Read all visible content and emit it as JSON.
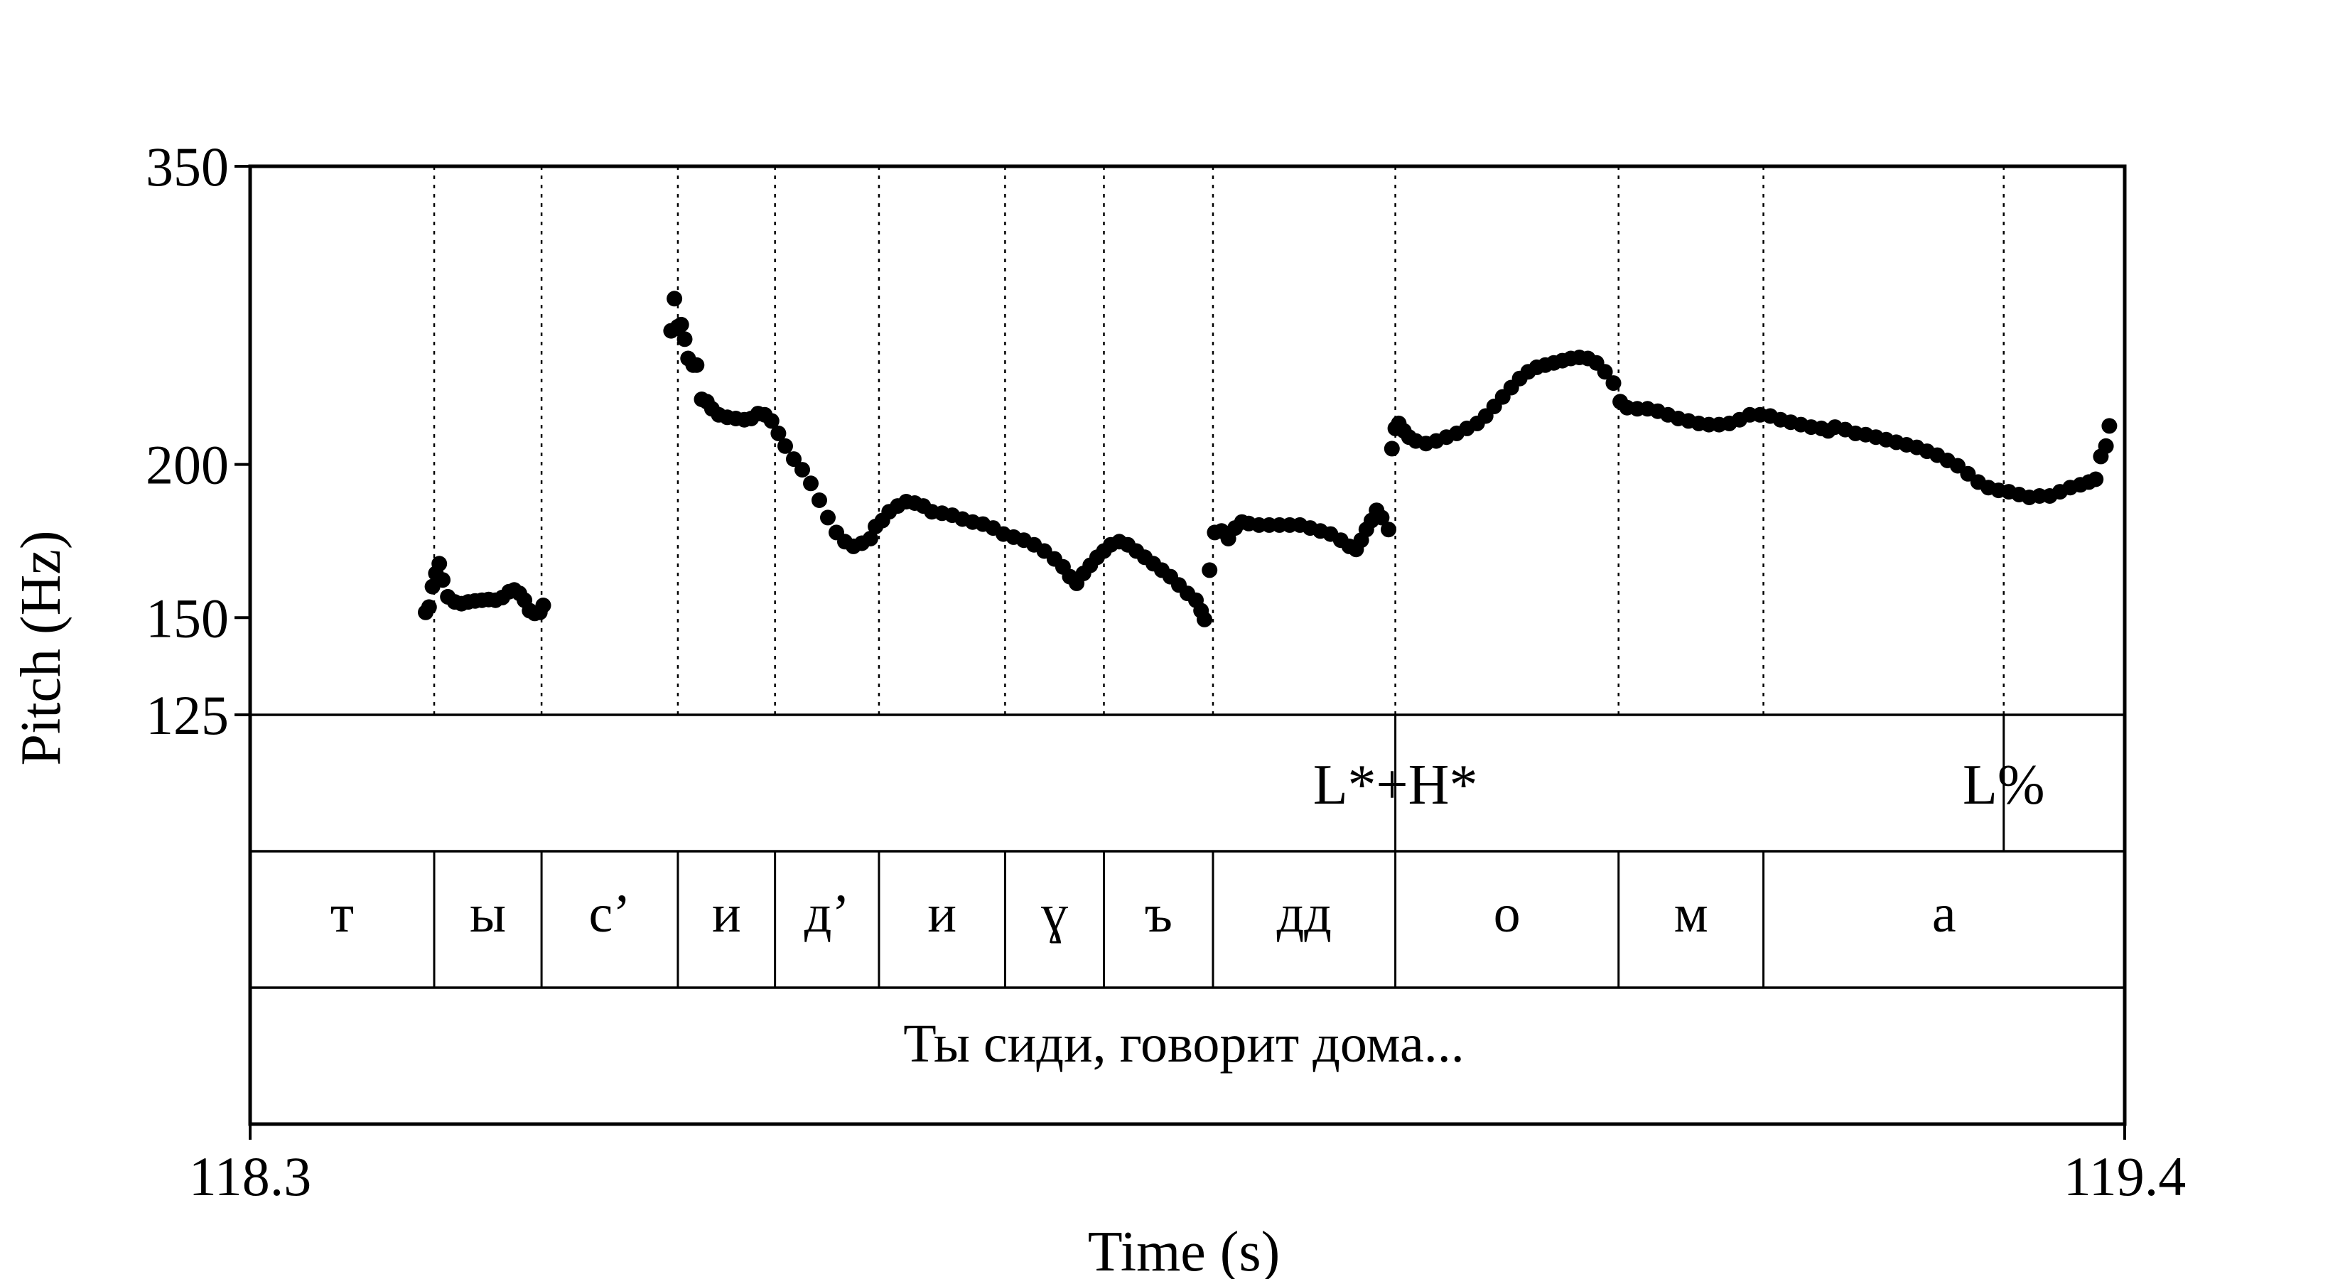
{
  "chart_data": {
    "type": "scatter",
    "title": "",
    "xlabel": "Time (s)",
    "ylabel": "Pitch (Hz)",
    "xlim": [
      118.3,
      119.4
    ],
    "ylim": [
      125,
      350
    ],
    "y_scale": "log",
    "x_ticks": [
      "118.3",
      "119.4"
    ],
    "y_ticks": [
      {
        "value": 125,
        "label": "125"
      },
      {
        "value": 150,
        "label": "150"
      },
      {
        "value": 200,
        "label": "200"
      },
      {
        "value": 350,
        "label": "350"
      }
    ],
    "grid": "vertical dotted lines at segment boundaries",
    "legend": "none",
    "marker_color": "#000000",
    "segment_boundaries": [
      118.408,
      118.471,
      118.551,
      118.608,
      118.669,
      118.743,
      118.801,
      118.865,
      118.972,
      119.103,
      119.188,
      119.329
    ],
    "tones": [
      {
        "time": 118.972,
        "label": "L*+H*"
      },
      {
        "time": 119.329,
        "label": "L%"
      }
    ],
    "segments": [
      {
        "start": 118.3,
        "end": 118.408,
        "label": "т"
      },
      {
        "start": 118.408,
        "end": 118.471,
        "label": "ы"
      },
      {
        "start": 118.471,
        "end": 118.551,
        "label": "с’"
      },
      {
        "start": 118.551,
        "end": 118.608,
        "label": "и"
      },
      {
        "start": 118.608,
        "end": 118.669,
        "label": "д’"
      },
      {
        "start": 118.669,
        "end": 118.743,
        "label": "и"
      },
      {
        "start": 118.743,
        "end": 118.801,
        "label": "ɣ"
      },
      {
        "start": 118.801,
        "end": 118.865,
        "label": "ъ"
      },
      {
        "start": 118.865,
        "end": 118.972,
        "label": "дд"
      },
      {
        "start": 118.972,
        "end": 119.103,
        "label": "о"
      },
      {
        "start": 119.103,
        "end": 119.188,
        "label": "м"
      },
      {
        "start": 119.188,
        "end": 119.4,
        "label": "а"
      }
    ],
    "utterance": "Ты сиди, говорит дома...",
    "series": [
      {
        "values": [
          [
            118.403,
            151.5
          ],
          [
            118.405,
            153
          ],
          [
            118.407,
            159
          ],
          [
            118.409,
            163
          ],
          [
            118.411,
            166
          ],
          [
            118.413,
            161
          ],
          [
            118.416,
            156
          ],
          [
            118.42,
            154.5
          ],
          [
            118.424,
            154
          ],
          [
            118.428,
            154.5
          ],
          [
            118.432,
            154.8
          ],
          [
            118.436,
            155
          ],
          [
            118.44,
            155.2
          ],
          [
            118.444,
            155
          ],
          [
            118.448,
            155.8
          ],
          [
            118.452,
            157.5
          ],
          [
            118.455,
            158
          ],
          [
            118.458,
            157
          ],
          [
            118.461,
            155
          ],
          [
            118.464,
            152
          ],
          [
            118.467,
            151.2
          ],
          [
            118.47,
            151.5
          ],
          [
            118.472,
            153.5
          ],
          [
            118.547,
            257
          ],
          [
            118.549,
            273
          ],
          [
            118.551,
            259
          ],
          [
            118.553,
            260
          ],
          [
            118.555,
            253
          ],
          [
            118.557,
            244
          ],
          [
            118.56,
            241
          ],
          [
            118.562,
            241
          ],
          [
            118.565,
            226
          ],
          [
            118.568,
            225
          ],
          [
            118.571,
            222
          ],
          [
            118.575,
            219.5
          ],
          [
            118.58,
            218.5
          ],
          [
            118.585,
            218
          ],
          [
            118.59,
            217.5
          ],
          [
            118.594,
            218
          ],
          [
            118.598,
            220
          ],
          [
            118.602,
            219.5
          ],
          [
            118.606,
            217
          ],
          [
            118.61,
            212
          ],
          [
            118.614,
            207
          ],
          [
            118.619,
            202
          ],
          [
            118.624,
            198
          ],
          [
            118.629,
            193
          ],
          [
            118.634,
            187
          ],
          [
            118.639,
            181
          ],
          [
            118.644,
            176
          ],
          [
            118.649,
            173
          ],
          [
            118.654,
            171.5
          ],
          [
            118.659,
            172.5
          ],
          [
            118.664,
            174
          ],
          [
            118.667,
            178
          ],
          [
            118.671,
            180
          ],
          [
            118.675,
            183
          ],
          [
            118.68,
            185
          ],
          [
            118.685,
            186.5
          ],
          [
            118.69,
            186
          ],
          [
            118.695,
            185
          ],
          [
            118.7,
            183
          ],
          [
            118.706,
            182.5
          ],
          [
            118.712,
            181.8
          ],
          [
            118.718,
            180.5
          ],
          [
            118.724,
            179.5
          ],
          [
            118.73,
            178.8
          ],
          [
            118.736,
            177.5
          ],
          [
            118.742,
            175.5
          ],
          [
            118.748,
            174.5
          ],
          [
            118.754,
            173.5
          ],
          [
            118.76,
            172
          ],
          [
            118.766,
            170
          ],
          [
            118.772,
            167.5
          ],
          [
            118.777,
            165
          ],
          [
            118.781,
            162
          ],
          [
            118.785,
            160
          ],
          [
            118.789,
            163
          ],
          [
            118.793,
            165.5
          ],
          [
            118.797,
            168
          ],
          [
            118.801,
            170
          ],
          [
            118.805,
            172
          ],
          [
            118.81,
            173
          ],
          [
            118.815,
            172
          ],
          [
            118.82,
            170
          ],
          [
            118.825,
            168
          ],
          [
            118.83,
            166
          ],
          [
            118.835,
            164
          ],
          [
            118.84,
            162
          ],
          [
            118.845,
            159.5
          ],
          [
            118.85,
            157
          ],
          [
            118.855,
            155
          ],
          [
            118.858,
            152
          ],
          [
            118.86,
            149.5
          ],
          [
            118.863,
            164
          ],
          [
            118.866,
            176
          ],
          [
            118.87,
            176.5
          ],
          [
            118.874,
            174
          ],
          [
            118.878,
            177.5
          ],
          [
            118.882,
            179.5
          ],
          [
            118.886,
            179
          ],
          [
            118.892,
            178.5
          ],
          [
            118.898,
            178.5
          ],
          [
            118.904,
            178.5
          ],
          [
            118.91,
            178.5
          ],
          [
            118.916,
            178.5
          ],
          [
            118.922,
            177.5
          ],
          [
            118.928,
            176.5
          ],
          [
            118.934,
            175.5
          ],
          [
            118.94,
            173.5
          ],
          [
            118.945,
            171.5
          ],
          [
            118.949,
            170.5
          ],
          [
            118.952,
            173.5
          ],
          [
            118.955,
            177
          ],
          [
            118.958,
            180
          ],
          [
            118.961,
            183.5
          ],
          [
            118.964,
            181
          ],
          [
            118.968,
            177
          ],
          [
            118.97,
            206
          ],
          [
            118.972,
            214
          ],
          [
            118.974,
            216
          ],
          [
            118.977,
            213
          ],
          [
            118.98,
            210.5
          ],
          [
            118.984,
            209
          ],
          [
            118.99,
            208
          ],
          [
            118.996,
            209
          ],
          [
            119.002,
            210.5
          ],
          [
            119.008,
            212
          ],
          [
            119.014,
            214
          ],
          [
            119.02,
            216
          ],
          [
            119.025,
            219
          ],
          [
            119.03,
            223
          ],
          [
            119.035,
            227
          ],
          [
            119.04,
            231
          ],
          [
            119.045,
            235
          ],
          [
            119.05,
            238
          ],
          [
            119.055,
            240
          ],
          [
            119.06,
            241
          ],
          [
            119.065,
            242
          ],
          [
            119.07,
            243
          ],
          [
            119.075,
            244
          ],
          [
            119.08,
            244.5
          ],
          [
            119.085,
            244
          ],
          [
            119.09,
            242
          ],
          [
            119.095,
            238
          ],
          [
            119.1,
            233
          ],
          [
            119.104,
            225
          ],
          [
            119.108,
            222.5
          ],
          [
            119.114,
            222
          ],
          [
            119.12,
            222
          ],
          [
            119.126,
            221
          ],
          [
            119.132,
            219.5
          ],
          [
            119.138,
            218
          ],
          [
            119.144,
            217
          ],
          [
            119.15,
            216
          ],
          [
            119.156,
            215.5
          ],
          [
            119.162,
            215.5
          ],
          [
            119.168,
            216
          ],
          [
            119.174,
            217.5
          ],
          [
            119.18,
            219.5
          ],
          [
            119.186,
            219.5
          ],
          [
            119.192,
            219
          ],
          [
            119.198,
            217.5
          ],
          [
            119.204,
            216.5
          ],
          [
            119.21,
            215.5
          ],
          [
            119.216,
            214.5
          ],
          [
            119.222,
            214
          ],
          [
            119.226,
            213
          ],
          [
            119.23,
            214.5
          ],
          [
            119.236,
            213.5
          ],
          [
            119.242,
            212
          ],
          [
            119.248,
            211.5
          ],
          [
            119.254,
            210.5
          ],
          [
            119.26,
            209.5
          ],
          [
            119.266,
            208.5
          ],
          [
            119.272,
            207.5
          ],
          [
            119.278,
            206.5
          ],
          [
            119.284,
            205
          ],
          [
            119.29,
            203.5
          ],
          [
            119.296,
            201.5
          ],
          [
            119.302,
            199.5
          ],
          [
            119.308,
            196.5
          ],
          [
            119.314,
            193.5
          ],
          [
            119.32,
            191.5
          ],
          [
            119.326,
            190.5
          ],
          [
            119.332,
            190
          ],
          [
            119.338,
            189
          ],
          [
            119.344,
            188
          ],
          [
            119.35,
            188.5
          ],
          [
            119.356,
            188.5
          ],
          [
            119.362,
            190
          ],
          [
            119.368,
            191.5
          ],
          [
            119.374,
            192.5
          ],
          [
            119.379,
            193.5
          ],
          [
            119.383,
            194.5
          ],
          [
            119.386,
            203
          ],
          [
            119.389,
            207
          ],
          [
            119.391,
            215
          ]
        ]
      }
    ]
  }
}
